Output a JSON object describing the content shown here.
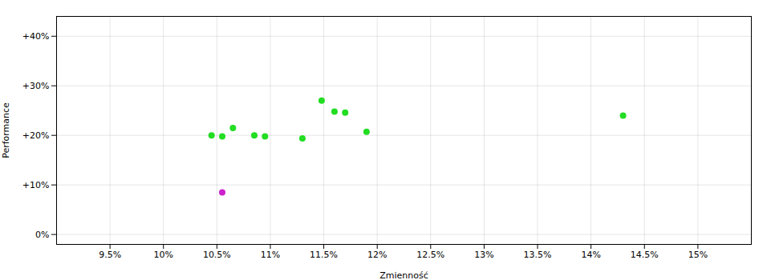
{
  "chart_data": {
    "type": "scatter",
    "xlabel": "Zmienność",
    "ylabel": "Performance",
    "xlim": [
      0.09,
      0.155
    ],
    "ylim": [
      -0.02,
      0.44
    ],
    "xticks": [
      {
        "value": 0.095,
        "label": "9.5%"
      },
      {
        "value": 0.1,
        "label": "10%"
      },
      {
        "value": 0.105,
        "label": "10.5%"
      },
      {
        "value": 0.11,
        "label": "11%"
      },
      {
        "value": 0.115,
        "label": "11.5%"
      },
      {
        "value": 0.12,
        "label": "12%"
      },
      {
        "value": 0.125,
        "label": "12.5%"
      },
      {
        "value": 0.13,
        "label": "13%"
      },
      {
        "value": 0.135,
        "label": "13.5%"
      },
      {
        "value": 0.14,
        "label": "14%"
      },
      {
        "value": 0.145,
        "label": "14.5%"
      },
      {
        "value": 0.15,
        "label": "15%"
      }
    ],
    "yticks": [
      {
        "value": 0.0,
        "label": "0%"
      },
      {
        "value": 0.1,
        "label": "+10%"
      },
      {
        "value": 0.2,
        "label": "+20%"
      },
      {
        "value": 0.3,
        "label": "+30%"
      },
      {
        "value": 0.4,
        "label": "+40%"
      }
    ],
    "grid": true,
    "marker": "circle",
    "series": [
      {
        "color": "#22dd22",
        "x": [
          0.1045,
          0.1055,
          0.1065,
          0.1085,
          0.1095,
          0.113,
          0.1148,
          0.116,
          0.117,
          0.119,
          0.143
        ],
        "values": [
          0.2,
          0.198,
          0.215,
          0.2,
          0.198,
          0.194,
          0.27,
          0.248,
          0.246,
          0.207,
          0.24
        ]
      },
      {
        "color": "#cc22cc",
        "x": [
          0.1055
        ],
        "values": [
          0.085
        ]
      }
    ]
  }
}
